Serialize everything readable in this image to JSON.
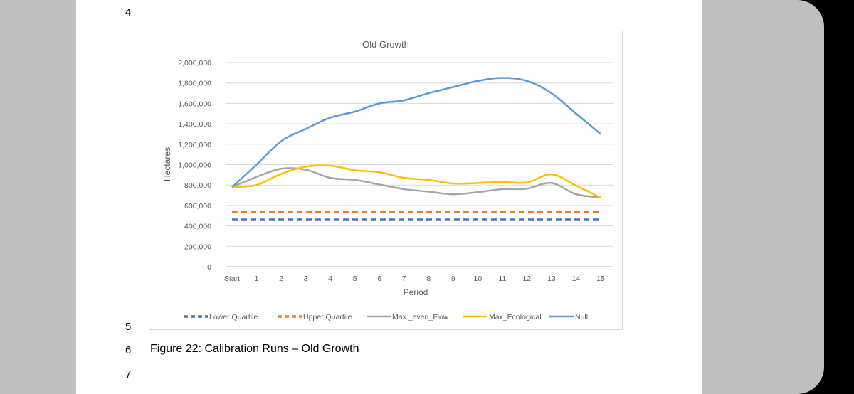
{
  "document": {
    "line_numbers": [
      "4",
      "5",
      "6",
      "7"
    ],
    "caption": "Figure 22: Calibration Runs – Old Growth"
  },
  "chart_data": {
    "type": "line",
    "title": "Old Growth",
    "xlabel": "Period",
    "ylabel": "Hectares",
    "categories": [
      "Start",
      "1",
      "2",
      "3",
      "4",
      "5",
      "6",
      "7",
      "8",
      "9",
      "10",
      "11",
      "12",
      "13",
      "14",
      "15"
    ],
    "ylim": [
      0,
      2000000
    ],
    "yticks": [
      0,
      200000,
      400000,
      600000,
      800000,
      1000000,
      1200000,
      1400000,
      1600000,
      1800000,
      2000000
    ],
    "ytick_labels": [
      "0",
      "200,000",
      "400,000",
      "600,000",
      "800,000",
      "1,000,000",
      "1,200,000",
      "1,400,000",
      "1,600,000",
      "1,800,000",
      "2,000,000"
    ],
    "grid": true,
    "legend_position": "bottom",
    "series": [
      {
        "name": "Lower Quartile",
        "color": "#4472c4",
        "dashed": true,
        "values": [
          460000,
          460000,
          460000,
          460000,
          460000,
          460000,
          460000,
          460000,
          460000,
          460000,
          460000,
          460000,
          460000,
          460000,
          460000,
          460000
        ]
      },
      {
        "name": "Upper Quartile",
        "color": "#ed7d31",
        "dashed": true,
        "values": [
          535000,
          535000,
          535000,
          535000,
          535000,
          535000,
          535000,
          535000,
          535000,
          535000,
          535000,
          535000,
          535000,
          535000,
          535000,
          535000
        ]
      },
      {
        "name": "Max _even_Flow",
        "color": "#a5a5a5",
        "dashed": false,
        "values": [
          780000,
          880000,
          960000,
          950000,
          870000,
          850000,
          805000,
          760000,
          735000,
          710000,
          730000,
          760000,
          765000,
          820000,
          710000,
          680000
        ]
      },
      {
        "name": "Max_Ecological",
        "color": "#ffc000",
        "dashed": false,
        "values": [
          780000,
          800000,
          910000,
          980000,
          990000,
          945000,
          925000,
          870000,
          850000,
          815000,
          820000,
          830000,
          825000,
          905000,
          795000,
          675000
        ]
      },
      {
        "name": "Null",
        "color": "#5b9bd5",
        "dashed": false,
        "values": [
          780000,
          1000000,
          1230000,
          1350000,
          1460000,
          1520000,
          1600000,
          1630000,
          1700000,
          1760000,
          1820000,
          1850000,
          1820000,
          1700000,
          1500000,
          1300000
        ]
      }
    ]
  }
}
